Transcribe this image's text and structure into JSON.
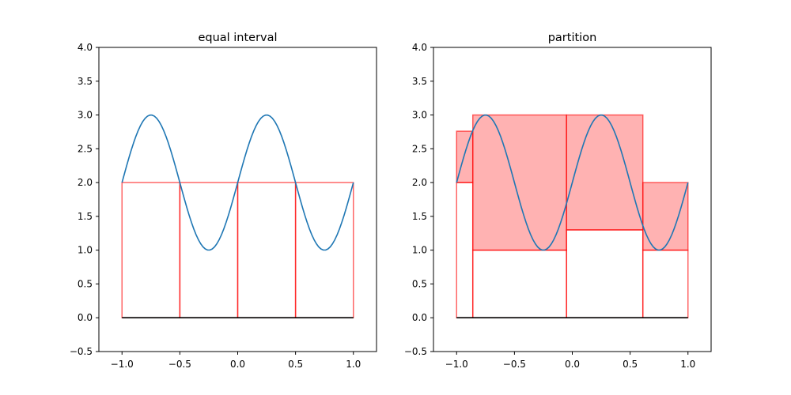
{
  "chart_data": [
    {
      "type": "line",
      "title": "equal interval",
      "xlabel": "",
      "ylabel": "",
      "xlim": [
        -1.2,
        1.2
      ],
      "ylim": [
        -0.5,
        4.0
      ],
      "xticks": [
        -1.0,
        -0.5,
        0.0,
        0.5,
        1.0
      ],
      "xtick_labels": [
        "−1.0",
        "−0.5",
        "0.0",
        "0.5",
        "1.0"
      ],
      "yticks": [
        -0.5,
        0.0,
        0.5,
        1.0,
        1.5,
        2.0,
        2.5,
        3.0,
        3.5,
        4.0
      ],
      "ytick_labels": [
        "−0.5",
        "0.0",
        "0.5",
        "1.0",
        "1.5",
        "2.0",
        "2.5",
        "3.0",
        "3.5",
        "4.0"
      ],
      "curve": {
        "name": "2 + sin(2πx)",
        "x_range": [
          -1.0,
          1.0
        ],
        "offset": 2,
        "amplitude": 1,
        "frequency": 2
      },
      "baseline": {
        "y": 0,
        "x_range": [
          -1.0,
          1.0
        ]
      },
      "rectangles": [
        {
          "x0": -1.0,
          "x1": -0.5,
          "y0": 0.0,
          "y1": 2.0,
          "filled": false
        },
        {
          "x0": -0.5,
          "x1": 0.0,
          "y0": 0.0,
          "y1": 2.0,
          "filled": false
        },
        {
          "x0": 0.0,
          "x1": 0.5,
          "y0": 0.0,
          "y1": 2.0,
          "filled": false
        },
        {
          "x0": 0.5,
          "x1": 1.0,
          "y0": 0.0,
          "y1": 2.0,
          "filled": false
        }
      ]
    },
    {
      "type": "line",
      "title": "partition",
      "xlabel": "",
      "ylabel": "",
      "xlim": [
        -1.2,
        1.2
      ],
      "ylim": [
        -0.5,
        4.0
      ],
      "xticks": [
        -1.0,
        -0.5,
        0.0,
        0.5,
        1.0
      ],
      "xtick_labels": [
        "−1.0",
        "−0.5",
        "0.0",
        "0.5",
        "1.0"
      ],
      "yticks": [
        -0.5,
        0.0,
        0.5,
        1.0,
        1.5,
        2.0,
        2.5,
        3.0,
        3.5,
        4.0
      ],
      "ytick_labels": [
        "−0.5",
        "0.0",
        "0.5",
        "1.0",
        "1.5",
        "2.0",
        "2.5",
        "3.0",
        "3.5",
        "4.0"
      ],
      "curve": {
        "name": "2 + sin(2πx)",
        "x_range": [
          -1.0,
          1.0
        ],
        "offset": 2,
        "amplitude": 1,
        "frequency": 2
      },
      "baseline": {
        "y": 0,
        "x_range": [
          -1.0,
          1.0
        ]
      },
      "rectangles": [
        {
          "x0": -1.0,
          "x1": -0.86,
          "y0": 0.0,
          "y1": 2.0,
          "filled": false
        },
        {
          "x0": -1.0,
          "x1": -0.86,
          "y0": 2.0,
          "y1": 2.76,
          "filled": true
        },
        {
          "x0": -0.86,
          "x1": -0.05,
          "y0": 0.0,
          "y1": 1.0,
          "filled": false
        },
        {
          "x0": -0.86,
          "x1": -0.05,
          "y0": 1.0,
          "y1": 3.0,
          "filled": true
        },
        {
          "x0": -0.05,
          "x1": 0.61,
          "y0": 0.0,
          "y1": 1.3,
          "filled": false
        },
        {
          "x0": -0.05,
          "x1": 0.61,
          "y0": 1.3,
          "y1": 3.0,
          "filled": true
        },
        {
          "x0": 0.61,
          "x1": 1.0,
          "y0": 0.0,
          "y1": 1.0,
          "filled": false
        },
        {
          "x0": 0.61,
          "x1": 1.0,
          "y0": 1.0,
          "y1": 2.0,
          "filled": true
        }
      ]
    }
  ],
  "colors": {
    "curve": "#1f77b4",
    "rect_edge": "#ff0000",
    "rect_fill": "#ff0000",
    "baseline": "#000000",
    "axes": "#000000",
    "background": "#ffffff"
  }
}
